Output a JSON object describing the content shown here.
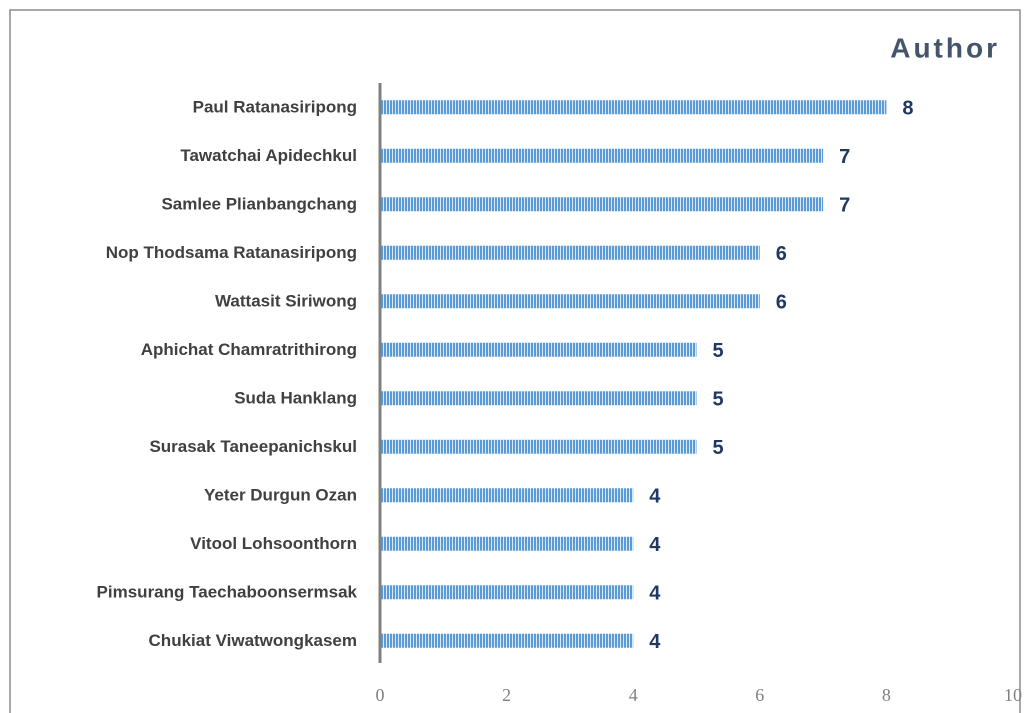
{
  "chart_data": {
    "type": "bar",
    "orientation": "horizontal",
    "title": "Author",
    "categories": [
      "Paul Ratanasiripong",
      "Tawatchai Apidechkul",
      "Samlee Plianbangchang",
      "Nop Thodsama Ratanasiripong",
      "Wattasit Siriwong",
      "Aphichat Chamratrithirong",
      "Suda Hanklang",
      "Surasak Taneepanichskul",
      "Yeter Durgun Ozan",
      "Vitool Lohsoonthorn",
      "Pimsurang Taechaboonsermsak",
      "Chukiat Viwatwongkasem"
    ],
    "values": [
      8,
      7,
      7,
      6,
      6,
      5,
      5,
      5,
      4,
      4,
      4,
      4
    ],
    "color": "#5b9bd5",
    "xlim": [
      0,
      10
    ],
    "xticks": [
      0,
      2,
      4,
      6,
      8,
      10
    ]
  }
}
